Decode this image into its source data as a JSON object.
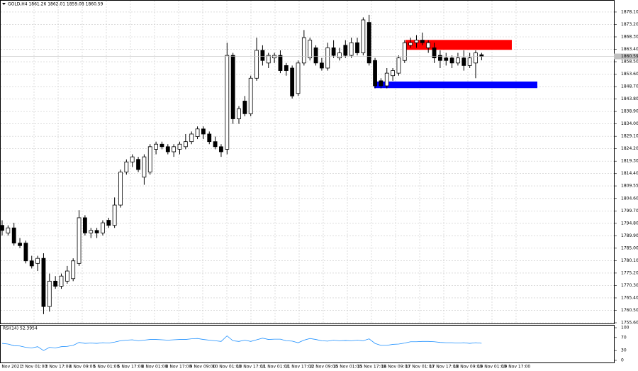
{
  "chart_data": {
    "type": "candlestick",
    "header": "GOLD,H4 1861.26 1862.01 1859.08 1860.59",
    "ohlc": [
      [
        1794,
        1796,
        1790,
        1792
      ],
      [
        1791,
        1794,
        1790,
        1793
      ],
      [
        1793,
        1795,
        1786,
        1787
      ],
      [
        1787,
        1789,
        1785,
        1786
      ],
      [
        1787,
        1788,
        1779,
        1780
      ],
      [
        1780,
        1782,
        1777,
        1778
      ],
      [
        1779,
        1782,
        1776,
        1781
      ],
      [
        1781,
        1783,
        1759,
        1762
      ],
      [
        1762,
        1775,
        1760,
        1772
      ],
      [
        1772,
        1774,
        1769,
        1770
      ],
      [
        1770,
        1775,
        1769,
        1774
      ],
      [
        1772,
        1778,
        1771,
        1776
      ],
      [
        1773,
        1781,
        1772,
        1780
      ],
      [
        1779,
        1800,
        1778,
        1797
      ],
      [
        1797,
        1798,
        1790,
        1791
      ],
      [
        1791,
        1793,
        1789,
        1792
      ],
      [
        1792,
        1793,
        1789,
        1791
      ],
      [
        1791,
        1796,
        1790,
        1795
      ],
      [
        1796,
        1797,
        1793,
        1794
      ],
      [
        1794,
        1805,
        1793,
        1802
      ],
      [
        1802,
        1816,
        1801,
        1815
      ],
      [
        1815,
        1820,
        1814,
        1819
      ],
      [
        1819,
        1822,
        1817,
        1821
      ],
      [
        1820,
        1821,
        1815,
        1816
      ],
      [
        1813,
        1822,
        1810,
        1821
      ],
      [
        1815,
        1826,
        1814,
        1825
      ],
      [
        1824,
        1827,
        1822,
        1826
      ],
      [
        1826,
        1827,
        1824,
        1825
      ],
      [
        1825,
        1826,
        1822,
        1823
      ],
      [
        1823,
        1826,
        1821,
        1825
      ],
      [
        1824,
        1827,
        1822,
        1826
      ],
      [
        1825,
        1830,
        1824,
        1827
      ],
      [
        1827,
        1831,
        1826,
        1830
      ],
      [
        1829,
        1833,
        1828,
        1832
      ],
      [
        1832,
        1833,
        1828,
        1830
      ],
      [
        1830,
        1831,
        1826,
        1827
      ],
      [
        1827,
        1829,
        1824,
        1825
      ],
      [
        1825,
        1826,
        1821,
        1823
      ],
      [
        1824,
        1866,
        1822,
        1861
      ],
      [
        1861,
        1862,
        1834,
        1836
      ],
      [
        1836,
        1841,
        1834,
        1840
      ],
      [
        1843,
        1845,
        1837,
        1838
      ],
      [
        1838,
        1853,
        1837,
        1852
      ],
      [
        1852,
        1868,
        1851,
        1863
      ],
      [
        1863,
        1865,
        1857,
        1859
      ],
      [
        1858,
        1862,
        1856,
        1861
      ],
      [
        1860,
        1862,
        1858,
        1861
      ],
      [
        1861,
        1863,
        1854,
        1855
      ],
      [
        1857,
        1858,
        1853,
        1855
      ],
      [
        1856,
        1857,
        1844,
        1845
      ],
      [
        1846,
        1859,
        1845,
        1858
      ],
      [
        1858,
        1871,
        1857,
        1868
      ],
      [
        1860,
        1868,
        1859,
        1867
      ],
      [
        1864,
        1865,
        1857,
        1858
      ],
      [
        1858,
        1860,
        1855,
        1856
      ],
      [
        1856,
        1866,
        1855,
        1864
      ],
      [
        1864,
        1867,
        1860,
        1861
      ],
      [
        1860,
        1864,
        1859,
        1862
      ],
      [
        1865,
        1867,
        1860,
        1861
      ],
      [
        1861,
        1868,
        1860,
        1866
      ],
      [
        1866,
        1868,
        1861,
        1862
      ],
      [
        1862,
        1876,
        1861,
        1875
      ],
      [
        1874,
        1877,
        1857,
        1858
      ],
      [
        1859,
        1860,
        1848,
        1849
      ],
      [
        1851,
        1852,
        1848,
        1849
      ],
      [
        1849,
        1856,
        1848,
        1854
      ],
      [
        1853,
        1856,
        1851,
        1855
      ],
      [
        1854,
        1861,
        1853,
        1860
      ],
      [
        1859,
        1867,
        1858,
        1866
      ],
      [
        1865,
        1868,
        1864,
        1866
      ],
      [
        1866,
        1869,
        1864,
        1867
      ],
      [
        1867,
        1870,
        1865,
        1866
      ],
      [
        1864,
        1867,
        1862,
        1866
      ],
      [
        1864,
        1866,
        1858,
        1860
      ],
      [
        1861,
        1863,
        1856,
        1859
      ],
      [
        1860,
        1862,
        1857,
        1859
      ],
      [
        1860,
        1861,
        1856,
        1858
      ],
      [
        1858,
        1862,
        1857,
        1860
      ],
      [
        1860,
        1863,
        1855,
        1857
      ],
      [
        1857,
        1862,
        1856,
        1860
      ],
      [
        1858,
        1863,
        1852,
        1862
      ],
      [
        1861.26,
        1862.01,
        1859.08,
        1860.59
      ]
    ],
    "zones": [
      {
        "color": "#ff0000",
        "top": 1867.1,
        "bottom": 1863.2
      },
      {
        "color": "#0000ff",
        "top": 1850.7,
        "bottom": 1848.1
      }
    ],
    "last_price": 1860.59,
    "ylim": [
      1755.6,
      1882.0
    ],
    "yticks": [
      {
        "value": 1878.1,
        "label": "1878.10"
      },
      {
        "value": 1873.2,
        "label": "1873.20"
      },
      {
        "value": 1868.3,
        "label": "1868.30"
      },
      {
        "value": 1863.4,
        "label": "1863.40"
      },
      {
        "value": 1858.5,
        "label": "1858.50"
      },
      {
        "value": 1853.6,
        "label": "1853.60"
      },
      {
        "value": 1848.7,
        "label": "1848.70"
      },
      {
        "value": 1843.8,
        "label": "1843.80"
      },
      {
        "value": 1838.9,
        "label": "1838.90"
      },
      {
        "value": 1834,
        "label": "1834.00"
      },
      {
        "value": 1829.1,
        "label": "1829.10"
      },
      {
        "value": 1824.2,
        "label": "1824.20"
      },
      {
        "value": 1819.3,
        "label": "1819.30"
      },
      {
        "value": 1814.4,
        "label": "1814.40"
      },
      1809.55,
      {
        "value": 1804.6,
        "label": "1804.60"
      },
      {
        "value": 1799.7,
        "label": "1799.70"
      },
      {
        "value": 1794.8,
        "label": "1794.80"
      },
      {
        "value": 1789.9,
        "label": "1789.90"
      },
      {
        "value": 1785,
        "label": "1785.00"
      },
      {
        "value": 1780.1,
        "label": "1780.10"
      },
      {
        "value": 1775.2,
        "label": "1775.20"
      },
      {
        "value": 1770.3,
        "label": "1770.30"
      },
      {
        "value": 1765.4,
        "label": "1765.40"
      },
      {
        "value": 1760.5,
        "label": "1760.50"
      },
      {
        "value": 1755.6,
        "label": "1755.60"
      }
    ],
    "xlabels": [
      "2 Nov 2021",
      "3 Nov 01:00",
      "3 Nov 17:00",
      "4 Nov 09:00",
      "5 Nov 01:00",
      "5 Nov 17:00",
      "8 Nov 01:00",
      "8 Nov 17:00",
      "9 Nov 09:00",
      "10 Nov 01:00",
      "10 Nov 17:00",
      "11 Nov 01:00",
      "11 Nov 17:00",
      "12 Nov 09:00",
      "15 Nov 01:00",
      "15 Nov 17:00",
      "16 Nov 09:00",
      "17 Nov 01:00",
      "17 Nov 17:00",
      "18 Nov 09:00",
      "19 Nov 01:00",
      "19 Nov 17:00"
    ],
    "grid": true,
    "rsi": {
      "label": "RSI(14) 52.3954",
      "color": "#1e90ff",
      "ylim": [
        0,
        100
      ],
      "yticks": [
        100,
        70,
        30,
        0
      ],
      "values": [
        52,
        50,
        45,
        44,
        40,
        38,
        42,
        30,
        40,
        38,
        42,
        43,
        46,
        55,
        52,
        53,
        52,
        54,
        53,
        56,
        60,
        62,
        63,
        60,
        62,
        64,
        64,
        63,
        62,
        63,
        64,
        64,
        66,
        67,
        64,
        62,
        60,
        58,
        75,
        60,
        58,
        62,
        58,
        63,
        68,
        64,
        65,
        65,
        60,
        59,
        54,
        62,
        67,
        64,
        60,
        59,
        62,
        60,
        61,
        60,
        62,
        60,
        66,
        52,
        46,
        46,
        49,
        50,
        53,
        57,
        57,
        58,
        58,
        57,
        55,
        54,
        54,
        53,
        54,
        52,
        54,
        52.3954
      ]
    }
  }
}
